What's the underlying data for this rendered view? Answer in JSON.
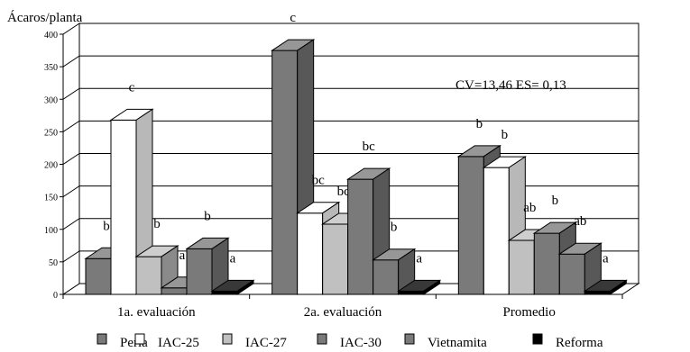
{
  "chart_data": {
    "type": "bar",
    "ylabel": "Ácaros/planta",
    "ylim": [
      0,
      400
    ],
    "yticks": [
      0,
      50,
      100,
      150,
      200,
      250,
      300,
      350,
      400
    ],
    "grid": true,
    "style": "3d",
    "legend_position": "bottom",
    "categories": [
      "1a. evaluación",
      "2a. evaluación",
      "Promedio"
    ],
    "series": [
      {
        "name": "Perla",
        "color": "#7a7a7a",
        "values": [
          55,
          375,
          212
        ],
        "labels": [
          "b",
          "c",
          "b"
        ]
      },
      {
        "name": "IAC-25",
        "color": "#ffffff",
        "values": [
          268,
          125,
          195
        ],
        "labels": [
          "c",
          "bc",
          "b"
        ]
      },
      {
        "name": "IAC-27",
        "color": "#c0c0c0",
        "values": [
          58,
          108,
          83
        ],
        "labels": [
          "b",
          "bc",
          "ab"
        ]
      },
      {
        "name": "IAC-30",
        "color": "#7a7a7a",
        "values": [
          10,
          177,
          94
        ],
        "labels": [
          "a",
          "bc",
          "b"
        ]
      },
      {
        "name": "Vietnamita",
        "color": "#7a7a7a",
        "values": [
          70,
          53,
          62
        ],
        "labels": [
          "b",
          "b",
          "ab"
        ]
      },
      {
        "name": "Reforma",
        "color": "#000000",
        "values": [
          5,
          5,
          5
        ],
        "labels": [
          "a",
          "a",
          "a"
        ]
      }
    ],
    "annotation": "CV=13,46   ES= 0,13"
  }
}
